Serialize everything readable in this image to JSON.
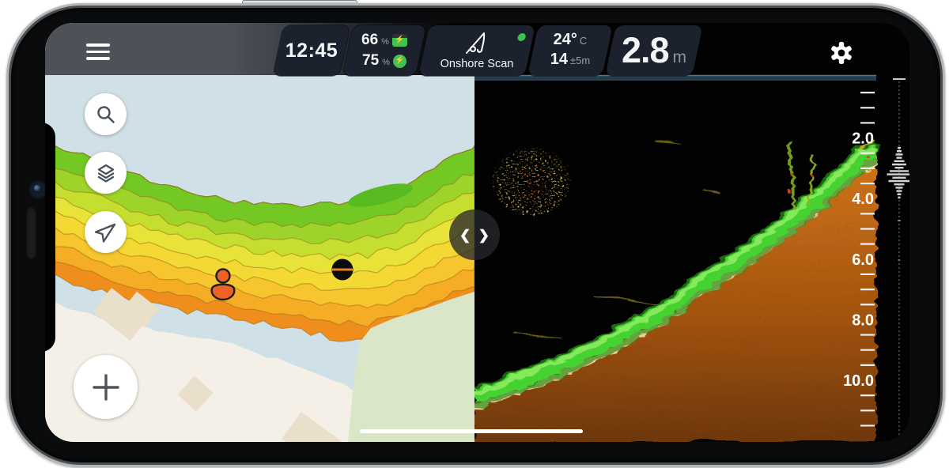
{
  "status_bar": {
    "time": "12:45",
    "phone_battery": {
      "percent": "66",
      "unit": "%",
      "icon": "battery-charging-icon"
    },
    "sonar_battery": {
      "percent": "75",
      "unit": "%",
      "icon": "power-bolt-icon"
    },
    "mode": {
      "label": "Onshore Scan",
      "icon": "fishing-rod-icon",
      "status_dot_color": "#3ec24e"
    },
    "weather": {
      "temperature": "24°",
      "temperature_unit": "C",
      "accuracy": "14",
      "accuracy_unit": "±5m"
    },
    "depth_readout": {
      "value": "2.8",
      "unit": "m"
    },
    "menu_icon": "hamburger-menu-icon",
    "settings_icon": "gear-icon"
  },
  "map": {
    "controls": [
      {
        "name": "search",
        "icon": "search-icon"
      },
      {
        "name": "layers",
        "icon": "layers-icon"
      },
      {
        "name": "locate",
        "icon": "navigation-arrow-icon"
      },
      {
        "name": "add-waypoint",
        "icon": "plus-icon"
      }
    ],
    "markers": [
      "user-position-marker",
      "waypoint-dot"
    ],
    "colors": {
      "water": "#cfe0e6",
      "land": "#f4f0e8",
      "park": "#d9e6c8",
      "building": "#eadfca",
      "contour_deep": "#ef8d1d",
      "contour_shallow": "#74c824",
      "marker_orange": "#ee6226"
    }
  },
  "sonar": {
    "depth_scale": {
      "labels": [
        "2.0",
        "4.0",
        "6.0",
        "8.0",
        "10.0"
      ],
      "label_values_m": [
        2,
        4,
        6,
        8,
        10
      ],
      "tick_step_m": 0.5
    },
    "colors": {
      "bottom_band": "#45d331",
      "sediment": "#ffe3ae",
      "substrate": "#c06a14",
      "school_core": "#e85a12",
      "school_halo": "#d8c41c",
      "ascope_trace": "#e0e0e0"
    },
    "features": [
      "surface-line",
      "fish-school-cloud",
      "bottom-slope",
      "a-scope-trace"
    ]
  }
}
